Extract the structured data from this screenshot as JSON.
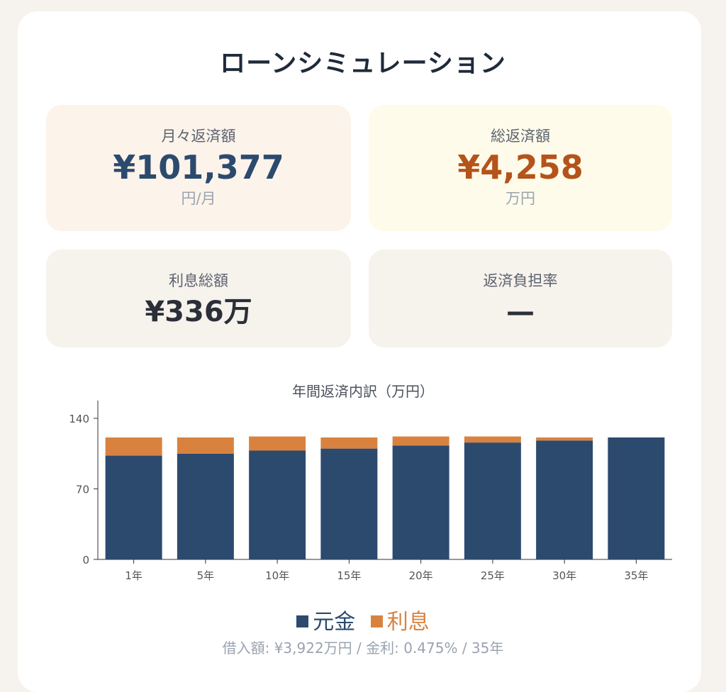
{
  "page": {
    "title": "ローンシミュレーション"
  },
  "stats": {
    "monthly": {
      "label": "月々返済額",
      "value": "¥101,377",
      "unit": "円/月"
    },
    "total": {
      "label": "総返済額",
      "value": "¥4,258",
      "unit": "万円"
    },
    "interest": {
      "label": "利息総額",
      "value": "¥336万"
    },
    "ratio": {
      "label": "返済負担率",
      "value": "—"
    }
  },
  "colors": {
    "principal": "#2c4a6e",
    "interest": "#d9823f",
    "axis": "#333333",
    "tick_text": "#555555"
  },
  "chart_data": {
    "type": "bar",
    "title": "年間返済内訳（万円）",
    "stacked": true,
    "categories": [
      "1年",
      "5年",
      "10年",
      "15年",
      "20年",
      "25年",
      "30年",
      "35年"
    ],
    "series": [
      {
        "name": "元金",
        "values": [
          103,
          105,
          108,
          110,
          113,
          116,
          118,
          121
        ]
      },
      {
        "name": "利息",
        "values": [
          18,
          16,
          14,
          11,
          9,
          6,
          3,
          0
        ]
      }
    ],
    "ylim": [
      0,
      140
    ],
    "yticks": [
      0,
      70,
      140
    ],
    "grid": false,
    "legend": "bottom"
  },
  "footer": {
    "text": "借入額: ¥3,922万円 / 金利: 0.475% / 35年"
  }
}
